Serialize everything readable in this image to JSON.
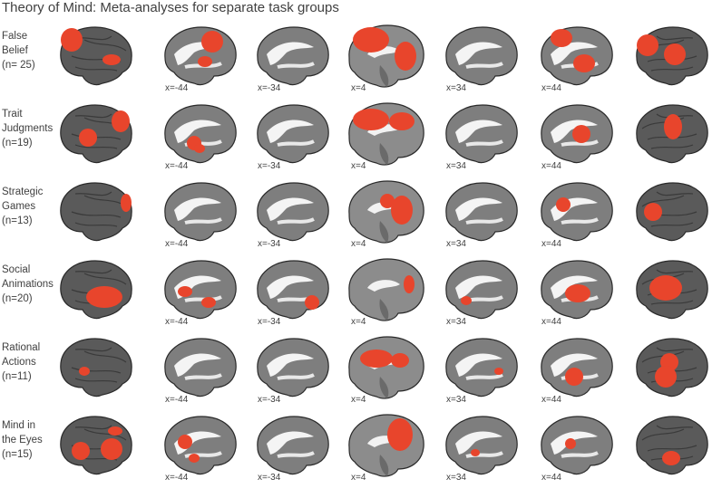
{
  "title": "Theory of Mind: Meta-analyses for separate task groups",
  "slice_labels": [
    "",
    "x=-44",
    "x=-34",
    "x=4",
    "x=34",
    "x=44",
    ""
  ],
  "rows": [
    {
      "name_lines": [
        "False",
        "Belief",
        "(n= 25)"
      ]
    },
    {
      "name_lines": [
        "Trait",
        "Judgments",
        "(n=19)"
      ]
    },
    {
      "name_lines": [
        "Strategic",
        "Games",
        "(n=13)"
      ]
    },
    {
      "name_lines": [
        "Social",
        "Animations",
        "(n=20)"
      ]
    },
    {
      "name_lines": [
        "Rational",
        "Actions",
        "(n=11)"
      ]
    },
    {
      "name_lines": [
        "Mind in",
        "the Eyes",
        "(n=15)"
      ]
    }
  ],
  "activation_color": "#e8452c"
}
